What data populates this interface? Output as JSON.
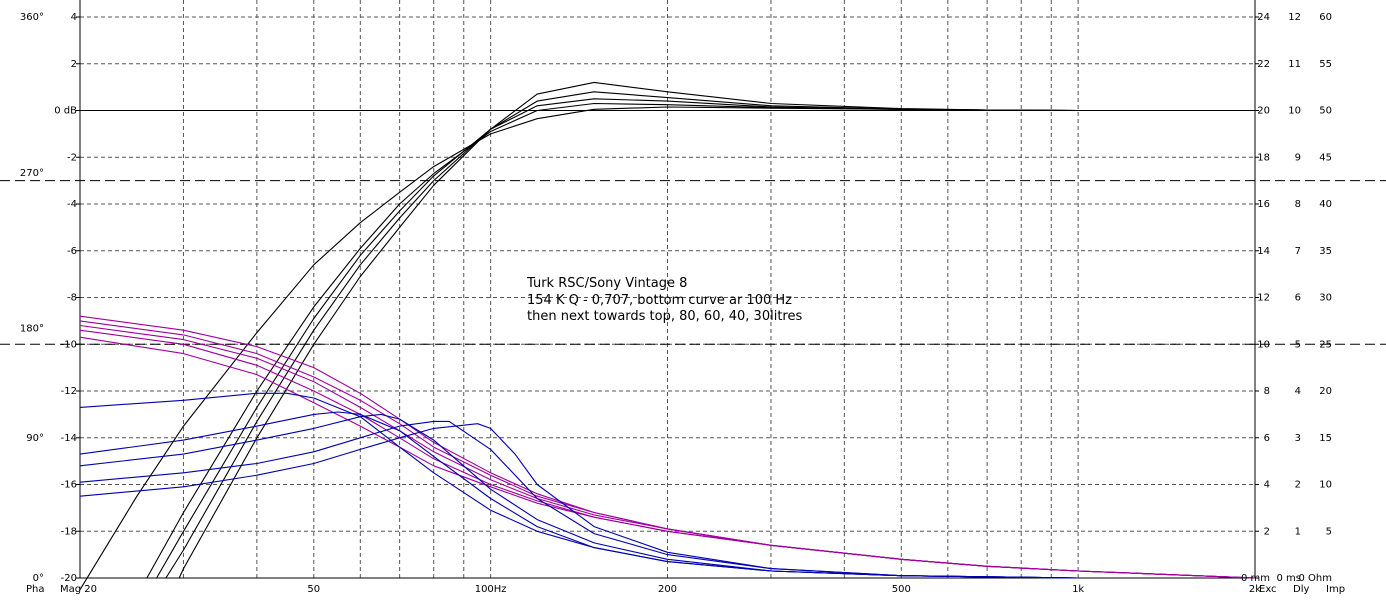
{
  "chart_data": {
    "type": "line",
    "x_scale": "log",
    "xlim": [
      20,
      2000
    ],
    "ylim": [
      -20,
      4
    ],
    "grid": true,
    "x_ticks": [
      {
        "value": 20,
        "label": ""
      },
      {
        "value": 50,
        "label": "50"
      },
      {
        "value": 100,
        "label": "100Hz"
      },
      {
        "value": 200,
        "label": "200"
      },
      {
        "value": 500,
        "label": "500"
      },
      {
        "value": 1000,
        "label": "1k"
      },
      {
        "value": 2000,
        "label": "2k"
      }
    ],
    "y_ticks_left": [
      {
        "value": 4,
        "label": "4"
      },
      {
        "value": 2,
        "label": "2"
      },
      {
        "value": 0,
        "label": "0 dB"
      },
      {
        "value": -2,
        "label": "-2"
      },
      {
        "value": -4,
        "label": "-4"
      },
      {
        "value": -6,
        "label": "-6"
      },
      {
        "value": -8,
        "label": "-8"
      },
      {
        "value": -10,
        "label": "-10"
      },
      {
        "value": -12,
        "label": "-12"
      },
      {
        "value": -14,
        "label": "-14"
      },
      {
        "value": -16,
        "label": "-16"
      },
      {
        "value": -18,
        "label": "-18"
      },
      {
        "value": -20,
        "label": "-20"
      }
    ],
    "phase_ticks": [
      {
        "value": 4,
        "label": "360°"
      },
      {
        "value": -2.67,
        "label": "270°"
      },
      {
        "value": -9.33,
        "label": "180°"
      },
      {
        "value": -14,
        "label": "90°"
      },
      {
        "value": -20,
        "label": "0°"
      }
    ],
    "right_ticks": [
      {
        "value": 4,
        "a": "24",
        "b": "12",
        "c": "60"
      },
      {
        "value": 2,
        "a": "22",
        "b": "11",
        "c": "55"
      },
      {
        "value": 0,
        "a": "20",
        "b": "10",
        "c": "50"
      },
      {
        "value": -2,
        "a": "18",
        "b": "9",
        "c": "45"
      },
      {
        "value": -4,
        "a": "16",
        "b": "8",
        "c": "40"
      },
      {
        "value": -6,
        "a": "14",
        "b": "7",
        "c": "35"
      },
      {
        "value": -8,
        "a": "12",
        "b": "6",
        "c": "30"
      },
      {
        "value": -10,
        "a": "10",
        "b": "5",
        "c": "25"
      },
      {
        "value": -12,
        "a": "8",
        "b": "4",
        "c": "20"
      },
      {
        "value": -14,
        "a": "6",
        "b": "3",
        "c": "15"
      },
      {
        "value": -16,
        "a": "4",
        "b": "2",
        "c": "10"
      },
      {
        "value": -18,
        "a": "2",
        "b": "1",
        "c": "5"
      },
      {
        "value": -20,
        "a": "0 mm",
        "b": "0 ms",
        "c": "0 Ohm"
      }
    ],
    "reference_lines": [
      -3,
      -10
    ],
    "bottom_labels": {
      "pha": "Pha",
      "mag": "Mag 20",
      "exc": "Exc",
      "dly": "Dly",
      "imp": "Imp"
    },
    "colors": {
      "magnitude": "#000000",
      "phase": "#a000a0",
      "excursion": "#0000b0",
      "pha_label": "#a000a0",
      "exc_label": "#a000a0",
      "dly_label": "#0000c0",
      "imp_label": "#e8e800"
    },
    "annotation": [
      "Turk RSC/Sony Vintage 8",
      "154 K Q - 0,707, bottom curve ar 100 Hz",
      "then next towards top, 80, 60, 40, 30litres"
    ],
    "series": [
      {
        "group": "magnitude",
        "x": [
          20,
          25,
          30,
          40,
          50,
          60,
          70,
          80,
          100,
          120,
          150,
          200,
          300,
          500,
          700,
          1000
        ],
        "y": [
          -20.5,
          -16.5,
          -13.5,
          -9.5,
          -6.6,
          -4.8,
          -3.5,
          -2.4,
          -1.0,
          -0.35,
          0.05,
          0.15,
          0.1,
          0.05,
          0.02,
          0.0
        ]
      },
      {
        "group": "magnitude",
        "x": [
          26,
          30,
          40,
          50,
          60,
          70,
          80,
          100,
          120,
          150,
          200,
          300,
          500,
          700,
          1000
        ],
        "y": [
          -20.0,
          -17.2,
          -12.0,
          -8.4,
          -5.9,
          -4.0,
          -2.7,
          -0.9,
          0.0,
          0.3,
          0.25,
          0.12,
          0.05,
          0.02,
          0.0
        ]
      },
      {
        "group": "magnitude",
        "x": [
          27,
          30,
          40,
          50,
          60,
          70,
          80,
          100,
          120,
          150,
          200,
          300,
          500,
          700,
          1000
        ],
        "y": [
          -20.0,
          -18.0,
          -12.7,
          -8.9,
          -6.2,
          -4.3,
          -2.8,
          -0.8,
          0.2,
          0.5,
          0.4,
          0.15,
          0.05,
          0.02,
          0.0
        ]
      },
      {
        "group": "magnitude",
        "x": [
          28,
          30,
          40,
          50,
          60,
          70,
          80,
          100,
          120,
          150,
          200,
          300,
          500,
          700,
          1000
        ],
        "y": [
          -20.0,
          -18.8,
          -13.3,
          -9.4,
          -6.6,
          -4.6,
          -3.0,
          -0.8,
          0.4,
          0.8,
          0.55,
          0.2,
          0.06,
          0.02,
          0.0
        ]
      },
      {
        "group": "magnitude",
        "x": [
          29.5,
          30,
          40,
          50,
          60,
          70,
          80,
          100,
          120,
          150,
          200,
          300,
          500,
          700,
          1000
        ],
        "y": [
          -20.0,
          -19.6,
          -14.0,
          -10.0,
          -7.1,
          -5.0,
          -3.2,
          -0.8,
          0.7,
          1.2,
          0.8,
          0.3,
          0.08,
          0.02,
          0.0
        ]
      },
      {
        "group": "phase",
        "x": [
          20,
          30,
          40,
          50,
          60,
          70,
          80,
          100,
          120,
          150,
          200,
          300,
          500,
          700,
          1000,
          2000
        ],
        "y": [
          -8.8,
          -9.4,
          -10.1,
          -11.0,
          -12.1,
          -13.2,
          -14.2,
          -15.5,
          -16.4,
          -17.2,
          -17.9,
          -18.6,
          -19.2,
          -19.5,
          -19.7,
          -20.0
        ]
      },
      {
        "group": "phase",
        "x": [
          20,
          30,
          40,
          50,
          60,
          70,
          80,
          100,
          120,
          150,
          200,
          300,
          500,
          700,
          1000,
          2000
        ],
        "y": [
          -9.0,
          -9.6,
          -10.4,
          -11.4,
          -12.4,
          -13.4,
          -14.4,
          -15.6,
          -16.5,
          -17.2,
          -17.9,
          -18.6,
          -19.2,
          -19.5,
          -19.7,
          -20.0
        ]
      },
      {
        "group": "phase",
        "x": [
          20,
          30,
          40,
          50,
          60,
          70,
          80,
          100,
          120,
          150,
          200,
          300,
          500,
          700,
          1000,
          2000
        ],
        "y": [
          -9.2,
          -9.8,
          -10.6,
          -11.6,
          -12.7,
          -13.7,
          -14.6,
          -15.8,
          -16.6,
          -17.3,
          -17.9,
          -18.6,
          -19.2,
          -19.5,
          -19.7,
          -20.0
        ]
      },
      {
        "group": "phase",
        "x": [
          20,
          30,
          40,
          50,
          60,
          70,
          80,
          100,
          120,
          150,
          200,
          300,
          500,
          700,
          1000,
          2000
        ],
        "y": [
          -9.4,
          -10.0,
          -10.9,
          -12.0,
          -13.0,
          -14.0,
          -14.9,
          -16.0,
          -16.7,
          -17.4,
          -18.0,
          -18.6,
          -19.2,
          -19.5,
          -19.7,
          -20.0
        ]
      },
      {
        "group": "phase",
        "x": [
          20,
          30,
          40,
          50,
          60,
          70,
          80,
          100,
          120,
          150,
          200,
          300,
          500,
          700,
          1000,
          2000
        ],
        "y": [
          -9.7,
          -10.4,
          -11.3,
          -12.5,
          -13.5,
          -14.4,
          -15.2,
          -16.1,
          -16.8,
          -17.4,
          -18.0,
          -18.6,
          -19.2,
          -19.5,
          -19.7,
          -20.0
        ]
      },
      {
        "group": "excursion",
        "x": [
          20,
          30,
          40,
          45,
          50,
          60,
          70,
          80,
          100,
          120,
          150,
          200,
          300,
          500,
          700,
          1000
        ],
        "y": [
          -12.7,
          -12.4,
          -12.1,
          -12.1,
          -12.3,
          -13.1,
          -14.4,
          -15.5,
          -17.1,
          -18.0,
          -18.7,
          -19.3,
          -19.7,
          -19.9,
          -19.95,
          -20.0
        ]
      },
      {
        "group": "excursion",
        "x": [
          20,
          30,
          40,
          50,
          55,
          60,
          70,
          80,
          100,
          120,
          150,
          200,
          300,
          500,
          700,
          1000
        ],
        "y": [
          -14.7,
          -14.1,
          -13.5,
          -13.0,
          -12.9,
          -13.0,
          -13.7,
          -14.8,
          -16.6,
          -17.8,
          -18.7,
          -19.3,
          -19.7,
          -19.9,
          -19.95,
          -20.0
        ]
      },
      {
        "group": "excursion",
        "x": [
          20,
          30,
          40,
          50,
          60,
          65,
          70,
          80,
          100,
          120,
          150,
          200,
          300,
          500,
          700,
          1000
        ],
        "y": [
          -15.2,
          -14.7,
          -14.1,
          -13.6,
          -13.1,
          -13.0,
          -13.2,
          -14.1,
          -16.2,
          -17.5,
          -18.5,
          -19.2,
          -19.7,
          -19.9,
          -19.95,
          -20.0
        ]
      },
      {
        "group": "excursion",
        "x": [
          20,
          30,
          40,
          50,
          60,
          70,
          80,
          85,
          100,
          120,
          150,
          200,
          300,
          500,
          700,
          1000
        ],
        "y": [
          -15.9,
          -15.5,
          -15.1,
          -14.6,
          -14.0,
          -13.5,
          -13.3,
          -13.3,
          -14.5,
          -16.6,
          -18.1,
          -19.0,
          -19.6,
          -19.9,
          -19.95,
          -20.0
        ]
      },
      {
        "group": "excursion",
        "x": [
          20,
          30,
          40,
          50,
          60,
          70,
          80,
          95,
          100,
          110,
          120,
          150,
          200,
          300,
          500,
          700,
          1000
        ],
        "y": [
          -16.5,
          -16.1,
          -15.6,
          -15.1,
          -14.5,
          -14.0,
          -13.6,
          -13.4,
          -13.6,
          -14.7,
          -16.0,
          -17.8,
          -18.9,
          -19.6,
          -19.9,
          -19.95,
          -20.0
        ]
      }
    ]
  }
}
